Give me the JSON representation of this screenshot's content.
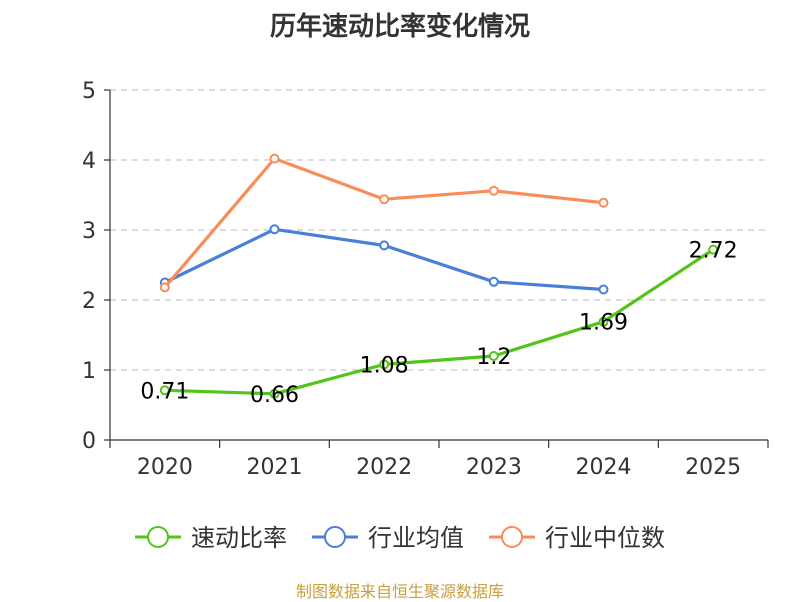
{
  "chart_data": {
    "type": "line",
    "title": "历年速动比率变化情况",
    "xlabel": "",
    "ylabel": "",
    "categories": [
      "2020",
      "2021",
      "2022",
      "2023",
      "2024",
      "2025"
    ],
    "ylim": [
      0,
      5
    ],
    "yticks": [
      0,
      1,
      2,
      3,
      4,
      5
    ],
    "grid": true,
    "legend_position": "bottom",
    "series": [
      {
        "name": "速动比率",
        "color": "#52c41a",
        "values": [
          0.71,
          0.66,
          1.08,
          1.2,
          1.69,
          2.72
        ],
        "labels": [
          "0.71",
          "0.66",
          "1.08",
          "1.2",
          "1.69",
          "2.72"
        ]
      },
      {
        "name": "行业均值",
        "color": "#4a7fd8",
        "values": [
          2.25,
          3.01,
          2.78,
          2.26,
          2.15,
          null
        ]
      },
      {
        "name": "行业中位数",
        "color": "#fa8c5a",
        "values": [
          2.18,
          4.02,
          3.44,
          3.56,
          3.39,
          null
        ]
      }
    ]
  },
  "source_note": "制图数据来自恒生聚源数据库"
}
